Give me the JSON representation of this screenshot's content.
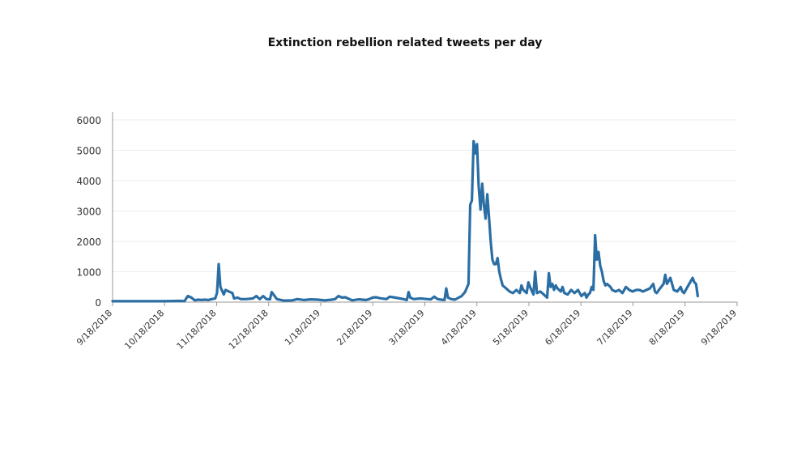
{
  "chart_data": {
    "type": "line",
    "title": "Extinction rebellion related tweets per day",
    "xlabel": "",
    "ylabel": "",
    "ylim": [
      0,
      6000
    ],
    "yticks": [
      0,
      1000,
      2000,
      3000,
      4000,
      5000,
      6000
    ],
    "x_tick_labels": [
      "9/18/2018",
      "10/18/2018",
      "11/18/2018",
      "12/18/2018",
      "1/18/2019",
      "2/18/2019",
      "3/18/2019",
      "4/18/2019",
      "5/18/2019",
      "6/18/2019",
      "7/18/2019",
      "8/18/2019",
      "9/18/2019"
    ],
    "x_range_days": [
      0,
      365
    ],
    "grid": "horizontal",
    "line_color": "#2b6ea4",
    "series": [
      {
        "name": "tweets per day",
        "points": [
          [
            0,
            30
          ],
          [
            10,
            30
          ],
          [
            20,
            30
          ],
          [
            30,
            30
          ],
          [
            40,
            40
          ],
          [
            42,
            30
          ],
          [
            44,
            200
          ],
          [
            46,
            150
          ],
          [
            48,
            60
          ],
          [
            50,
            80
          ],
          [
            52,
            70
          ],
          [
            54,
            80
          ],
          [
            56,
            70
          ],
          [
            58,
            100
          ],
          [
            60,
            120
          ],
          [
            61,
            300
          ],
          [
            62,
            1250
          ],
          [
            63,
            500
          ],
          [
            65,
            250
          ],
          [
            66,
            400
          ],
          [
            68,
            350
          ],
          [
            70,
            300
          ],
          [
            71,
            120
          ],
          [
            73,
            150
          ],
          [
            75,
            100
          ],
          [
            78,
            100
          ],
          [
            82,
            120
          ],
          [
            84,
            200
          ],
          [
            86,
            100
          ],
          [
            88,
            200
          ],
          [
            90,
            100
          ],
          [
            92,
            90
          ],
          [
            93,
            330
          ],
          [
            94,
            250
          ],
          [
            96,
            100
          ],
          [
            100,
            50
          ],
          [
            105,
            60
          ],
          [
            108,
            100
          ],
          [
            112,
            70
          ],
          [
            116,
            90
          ],
          [
            120,
            80
          ],
          [
            124,
            60
          ],
          [
            128,
            80
          ],
          [
            130,
            100
          ],
          [
            132,
            200
          ],
          [
            134,
            150
          ],
          [
            136,
            160
          ],
          [
            140,
            60
          ],
          [
            144,
            90
          ],
          [
            148,
            70
          ],
          [
            150,
            100
          ],
          [
            152,
            150
          ],
          [
            154,
            160
          ],
          [
            156,
            130
          ],
          [
            160,
            100
          ],
          [
            162,
            180
          ],
          [
            164,
            160
          ],
          [
            168,
            120
          ],
          [
            170,
            100
          ],
          [
            172,
            70
          ],
          [
            173,
            330
          ],
          [
            174,
            150
          ],
          [
            176,
            100
          ],
          [
            180,
            120
          ],
          [
            184,
            100
          ],
          [
            186,
            90
          ],
          [
            188,
            180
          ],
          [
            190,
            100
          ],
          [
            192,
            80
          ],
          [
            194,
            70
          ],
          [
            195,
            450
          ],
          [
            196,
            150
          ],
          [
            198,
            100
          ],
          [
            200,
            80
          ],
          [
            204,
            200
          ],
          [
            206,
            330
          ],
          [
            208,
            600
          ],
          [
            209,
            3200
          ],
          [
            210,
            3350
          ],
          [
            211,
            5300
          ],
          [
            212,
            4900
          ],
          [
            213,
            5200
          ],
          [
            214,
            3800
          ],
          [
            215,
            3050
          ],
          [
            216,
            3900
          ],
          [
            217,
            3200
          ],
          [
            218,
            2750
          ],
          [
            219,
            3550
          ],
          [
            220,
            2800
          ],
          [
            221,
            2000
          ],
          [
            222,
            1400
          ],
          [
            223,
            1250
          ],
          [
            224,
            1250
          ],
          [
            225,
            1450
          ],
          [
            226,
            1000
          ],
          [
            227,
            750
          ],
          [
            228,
            550
          ],
          [
            230,
            450
          ],
          [
            232,
            350
          ],
          [
            234,
            300
          ],
          [
            236,
            400
          ],
          [
            238,
            300
          ],
          [
            239,
            550
          ],
          [
            240,
            400
          ],
          [
            242,
            300
          ],
          [
            243,
            650
          ],
          [
            244,
            500
          ],
          [
            246,
            250
          ],
          [
            247,
            1000
          ],
          [
            248,
            300
          ],
          [
            250,
            350
          ],
          [
            252,
            250
          ],
          [
            254,
            150
          ],
          [
            255,
            950
          ],
          [
            256,
            500
          ],
          [
            257,
            600
          ],
          [
            258,
            400
          ],
          [
            259,
            550
          ],
          [
            260,
            450
          ],
          [
            262,
            350
          ],
          [
            263,
            500
          ],
          [
            264,
            300
          ],
          [
            266,
            250
          ],
          [
            268,
            400
          ],
          [
            270,
            300
          ],
          [
            272,
            400
          ],
          [
            274,
            200
          ],
          [
            275,
            250
          ],
          [
            276,
            300
          ],
          [
            277,
            150
          ],
          [
            278,
            250
          ],
          [
            279,
            300
          ],
          [
            280,
            500
          ],
          [
            281,
            400
          ],
          [
            282,
            2200
          ],
          [
            283,
            1400
          ],
          [
            284,
            1650
          ],
          [
            285,
            1200
          ],
          [
            286,
            1000
          ],
          [
            287,
            700
          ],
          [
            288,
            550
          ],
          [
            289,
            600
          ],
          [
            290,
            550
          ],
          [
            291,
            500
          ],
          [
            292,
            400
          ],
          [
            294,
            350
          ],
          [
            296,
            400
          ],
          [
            298,
            300
          ],
          [
            300,
            500
          ],
          [
            302,
            400
          ],
          [
            304,
            350
          ],
          [
            306,
            400
          ],
          [
            308,
            400
          ],
          [
            310,
            350
          ],
          [
            312,
            400
          ],
          [
            314,
            450
          ],
          [
            316,
            600
          ],
          [
            317,
            350
          ],
          [
            318,
            300
          ],
          [
            320,
            450
          ],
          [
            322,
            600
          ],
          [
            323,
            900
          ],
          [
            324,
            600
          ],
          [
            325,
            700
          ],
          [
            326,
            800
          ],
          [
            327,
            600
          ],
          [
            328,
            400
          ],
          [
            330,
            350
          ],
          [
            332,
            500
          ],
          [
            333,
            350
          ],
          [
            334,
            300
          ],
          [
            336,
            500
          ],
          [
            338,
            700
          ],
          [
            339,
            800
          ],
          [
            340,
            650
          ],
          [
            341,
            600
          ],
          [
            342,
            200
          ]
        ]
      }
    ]
  }
}
